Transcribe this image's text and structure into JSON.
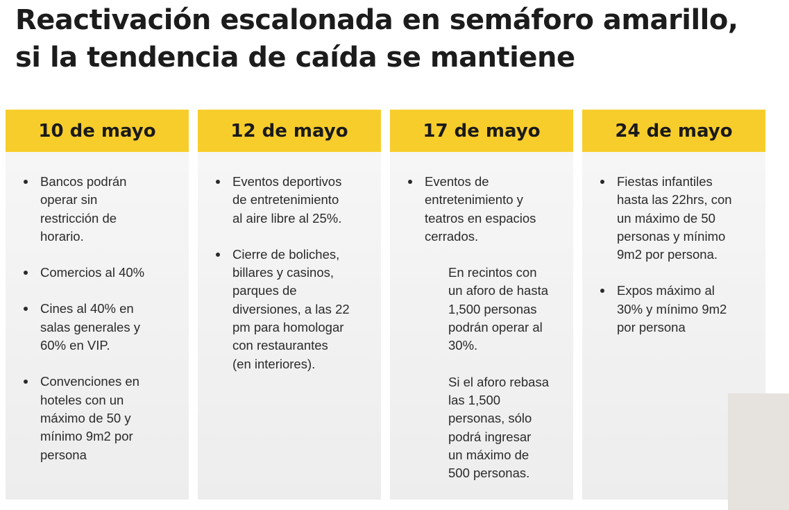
{
  "title": {
    "line1": "Reactivación escalonada en semáforo amarillo,",
    "line2": "si la tendencia de caída se mantiene"
  },
  "columns": [
    {
      "date": "10 de mayo",
      "bullets": [
        "Bancos podrán\noperar sin\nrestricción de\nhorario.",
        "Comercios al 40%",
        "Cines al 40% en\nsalas generales y\n60% en VIP.",
        "Convenciones en\nhoteles con un\nmáximo de 50 y\nmínimo 9m2 por\npersona"
      ]
    },
    {
      "date": "12 de mayo",
      "bullets": [
        "Eventos deportivos\nde entretenimiento\nal aire libre al 25%.",
        "Cierre de boliches,\nbillares y casinos,\nparques de\ndiversiones, a las 22\npm para homologar\ncon restaurantes\n(en interiores)."
      ]
    },
    {
      "date": "17 de mayo",
      "bullets": [
        "Eventos de\nentretenimiento y\nteatros en espacios\ncerrados."
      ],
      "sub": [
        "En recintos con\nun aforo de hasta\n1,500 personas\npodrán operar al\n30%.",
        "Si el aforo rebasa\nlas 1,500\npersonas, sólo\npodrá ingresar\nun máximo de\n500 personas."
      ]
    },
    {
      "date": "24 de mayo",
      "bullets": [
        "Fiestas infantiles\nhasta las 22hrs, con\nun máximo de 50\npersonas y mínimo\n9m2 por persona.",
        "Expos máximo al\n30% y mínimo 9m2\npor persona"
      ]
    }
  ],
  "colors": {
    "header_yellow": "#f7cd2c",
    "column_bg": "#f3f3f3",
    "text": "#1a1a1a"
  }
}
